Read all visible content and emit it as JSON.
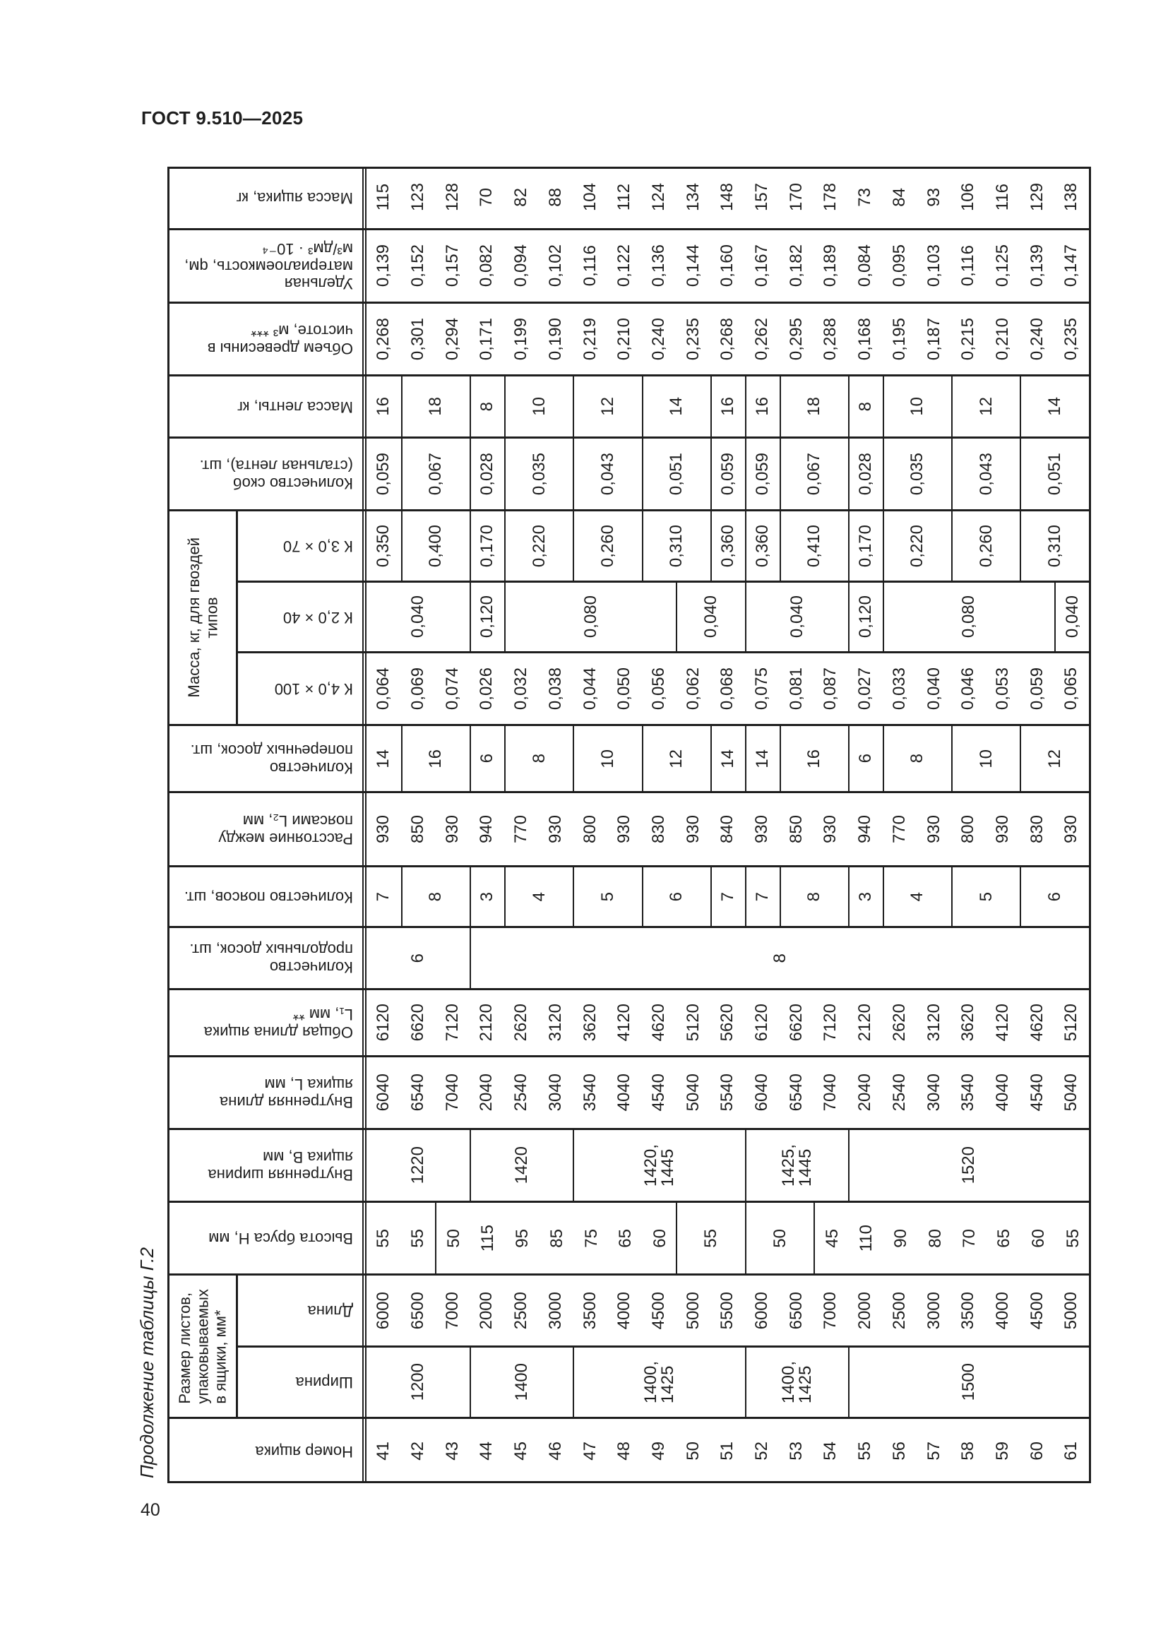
{
  "header": {
    "doc_id": "ГОСТ 9.510—2025"
  },
  "caption": "Продолжение таблицы Г.2",
  "page_number": "40",
  "table": {
    "bands": [
      {
        "label": "Масса ящика, кг",
        "segments": [
          {
            "span": 21,
            "values": [
              "115",
              "123",
              "128",
              "70",
              "82",
              "88",
              "104",
              "112",
              "124",
              "134",
              "148",
              "157",
              "170",
              "178",
              "73",
              "84",
              "93",
              "106",
              "116",
              "129",
              "138"
            ]
          }
        ]
      },
      {
        "label": "Удельная\nматериалоемкость, qм,\nм³/дм³ · 10⁻⁴",
        "segments": [
          {
            "span": 21,
            "values": [
              "0,139",
              "0,152",
              "0,157",
              "0,082",
              "0,094",
              "0,102",
              "0,116",
              "0,122",
              "0,136",
              "0,144",
              "0,160",
              "0,167",
              "0,182",
              "0,189",
              "0,084",
              "0,095",
              "0,103",
              "0,116",
              "0,125",
              "0,139",
              "0,147"
            ]
          }
        ]
      },
      {
        "label": "Объем древесины в\nчистоте, м³ ***",
        "segments": [
          {
            "span": 21,
            "values": [
              "0,268",
              "0,301",
              "0,294",
              "0,171",
              "0,199",
              "0,190",
              "0,219",
              "0,210",
              "0,240",
              "0,235",
              "0,268",
              "0,262",
              "0,295",
              "0,288",
              "0,168",
              "0,195",
              "0,187",
              "0,215",
              "0,210",
              "0,240",
              "0,235"
            ]
          }
        ]
      },
      {
        "label": "Масса ленты, кг",
        "segments": [
          {
            "span": 1,
            "value": "16"
          },
          {
            "span": 2,
            "value": "18"
          },
          {
            "span": 1,
            "value": "8"
          },
          {
            "span": 2,
            "value": "10"
          },
          {
            "span": 2,
            "value": "12"
          },
          {
            "span": 2,
            "value": "14"
          },
          {
            "span": 1,
            "value": "16"
          },
          {
            "span": 1,
            "value": "16"
          },
          {
            "span": 2,
            "value": "18"
          },
          {
            "span": 1,
            "value": "8"
          },
          {
            "span": 2,
            "value": "10"
          },
          {
            "span": 2,
            "value": "12"
          },
          {
            "span": 2,
            "value": "14"
          }
        ]
      },
      {
        "label": "Количество скоб\n(стальная лента), шт.",
        "segments": [
          {
            "span": 1,
            "value": "0,059"
          },
          {
            "span": 2,
            "value": "0,067"
          },
          {
            "span": 1,
            "value": "0,028"
          },
          {
            "span": 2,
            "value": "0,035"
          },
          {
            "span": 2,
            "value": "0,043"
          },
          {
            "span": 2,
            "value": "0,051"
          },
          {
            "span": 1,
            "value": "0,059"
          },
          {
            "span": 1,
            "value": "0,059"
          },
          {
            "span": 2,
            "value": "0,067"
          },
          {
            "span": 1,
            "value": "0,028"
          },
          {
            "span": 2,
            "value": "0,035"
          },
          {
            "span": 2,
            "value": "0,043"
          },
          {
            "span": 2,
            "value": "0,051"
          }
        ]
      },
      {
        "group_label": "Масса, кг, для гвоздей\nтипов",
        "subbands": [
          {
            "label": "К 3,0 × 70",
            "segments": [
              {
                "span": 1,
                "value": "0,350"
              },
              {
                "span": 2,
                "value": "0,400"
              },
              {
                "span": 1,
                "value": "0,170"
              },
              {
                "span": 2,
                "value": "0,220"
              },
              {
                "span": 2,
                "value": "0,260"
              },
              {
                "span": 2,
                "value": "0,310"
              },
              {
                "span": 1,
                "value": "0,360"
              },
              {
                "span": 1,
                "value": "0,360"
              },
              {
                "span": 2,
                "value": "0,410"
              },
              {
                "span": 1,
                "value": "0,170"
              },
              {
                "span": 2,
                "value": "0,220"
              },
              {
                "span": 2,
                "value": "0,260"
              },
              {
                "span": 2,
                "value": "0,310"
              }
            ]
          },
          {
            "label": "К 2,0 × 40",
            "segments": [
              {
                "span": 3,
                "value": "0,040"
              },
              {
                "span": 1,
                "value": "0,120"
              },
              {
                "span": 5,
                "value": "0,080"
              },
              {
                "span": 2,
                "value": "0,040"
              },
              {
                "span": 3,
                "value": "0,040"
              },
              {
                "span": 1,
                "value": "0,120"
              },
              {
                "span": 5,
                "value": "0,080"
              },
              {
                "span": 1,
                "value": "0,040"
              }
            ]
          },
          {
            "label": "К 4,0 × 100",
            "segments": [
              {
                "span": 21,
                "values": [
                  "0,064",
                  "0,069",
                  "0,074",
                  "0,026",
                  "0,032",
                  "0,038",
                  "0,044",
                  "0,050",
                  "0,056",
                  "0,062",
                  "0,068",
                  "0,075",
                  "0,081",
                  "0,087",
                  "0,027",
                  "0,033",
                  "0,040",
                  "0,046",
                  "0,053",
                  "0,059",
                  "0,065"
                ]
              }
            ]
          }
        ]
      },
      {
        "label": "Количество\nпоперечных досок, шт.",
        "segments": [
          {
            "span": 1,
            "value": "14"
          },
          {
            "span": 2,
            "value": "16"
          },
          {
            "span": 1,
            "value": "6"
          },
          {
            "span": 2,
            "value": "8"
          },
          {
            "span": 2,
            "value": "10"
          },
          {
            "span": 2,
            "value": "12"
          },
          {
            "span": 1,
            "value": "14"
          },
          {
            "span": 1,
            "value": "14"
          },
          {
            "span": 2,
            "value": "16"
          },
          {
            "span": 1,
            "value": "6"
          },
          {
            "span": 2,
            "value": "8"
          },
          {
            "span": 2,
            "value": "10"
          },
          {
            "span": 2,
            "value": "12"
          }
        ]
      },
      {
        "label": "Расстояние между\nпоясами L₂, мм",
        "segments": [
          {
            "span": 21,
            "values": [
              "930",
              "850",
              "930",
              "940",
              "770",
              "930",
              "800",
              "930",
              "830",
              "930",
              "840",
              "930",
              "850",
              "930",
              "940",
              "770",
              "930",
              "800",
              "930",
              "830",
              "930"
            ]
          }
        ]
      },
      {
        "label": "Количество поясов, шт.",
        "segments": [
          {
            "span": 1,
            "value": "7"
          },
          {
            "span": 2,
            "value": "8"
          },
          {
            "span": 1,
            "value": "3"
          },
          {
            "span": 2,
            "value": "4"
          },
          {
            "span": 2,
            "value": "5"
          },
          {
            "span": 2,
            "value": "6"
          },
          {
            "span": 1,
            "value": "7"
          },
          {
            "span": 1,
            "value": "7"
          },
          {
            "span": 2,
            "value": "8"
          },
          {
            "span": 1,
            "value": "3"
          },
          {
            "span": 2,
            "value": "4"
          },
          {
            "span": 2,
            "value": "5"
          },
          {
            "span": 2,
            "value": "6"
          }
        ]
      },
      {
        "label": "Количество\nпродольных досок, шт.",
        "segments": [
          {
            "span": 3,
            "value": "6"
          },
          {
            "span": 18,
            "value": "8"
          }
        ]
      },
      {
        "label": "Общая длина ящика\nL₁, мм **",
        "segments": [
          {
            "span": 21,
            "values": [
              "6120",
              "6620",
              "7120",
              "2120",
              "2620",
              "3120",
              "3620",
              "4120",
              "4620",
              "5120",
              "5620",
              "6120",
              "6620",
              "7120",
              "2120",
              "2620",
              "3120",
              "3620",
              "4120",
              "4620",
              "5120"
            ]
          }
        ]
      },
      {
        "label": "Внутренняя длина\nящика L, мм",
        "segments": [
          {
            "span": 21,
            "values": [
              "6040",
              "6540",
              "7040",
              "2040",
              "2540",
              "3040",
              "3540",
              "4040",
              "4540",
              "5040",
              "5540",
              "6040",
              "6540",
              "7040",
              "2040",
              "2540",
              "3040",
              "3540",
              "4040",
              "4540",
              "5040"
            ]
          }
        ]
      },
      {
        "label": "Внутренняя ширина\nящика B, мм",
        "segments": [
          {
            "span": 3,
            "value": "1220"
          },
          {
            "span": 3,
            "value": "1420"
          },
          {
            "span": 5,
            "value": "1420,\n1445"
          },
          {
            "span": 3,
            "value": "1425,\n1445"
          },
          {
            "span": 7,
            "value": "1520"
          }
        ]
      },
      {
        "label": "Высота бруса H, мм",
        "segments": [
          {
            "span": 2,
            "values": [
              "55",
              "55"
            ]
          },
          {
            "span": 7,
            "values": [
              "50",
              "115",
              "95",
              "85",
              "75",
              "65",
              "60"
            ]
          },
          {
            "span": 2,
            "value": "55"
          },
          {
            "span": 2,
            "value": "50"
          },
          {
            "span": 8,
            "values": [
              "45",
              "110",
              "90",
              "80",
              "70",
              "65",
              "60",
              "55"
            ]
          }
        ]
      },
      {
        "group_label": "Размер листов,\nупаковываемых\nв ящики, мм*",
        "subbands": [
          {
            "label": "Длина",
            "segments": [
              {
                "span": 21,
                "values": [
                  "6000",
                  "6500",
                  "7000",
                  "2000",
                  "2500",
                  "3000",
                  "3500",
                  "4000",
                  "4500",
                  "5000",
                  "5500",
                  "6000",
                  "6500",
                  "7000",
                  "2000",
                  "2500",
                  "3000",
                  "3500",
                  "4000",
                  "4500",
                  "5000"
                ]
              }
            ]
          },
          {
            "label": "Ширина",
            "segments": [
              {
                "span": 3,
                "value": "1200"
              },
              {
                "span": 3,
                "value": "1400"
              },
              {
                "span": 5,
                "value": "1400,\n1425"
              },
              {
                "span": 3,
                "value": "1400,\n1425"
              },
              {
                "span": 7,
                "value": "1500"
              }
            ]
          }
        ]
      },
      {
        "label": "Номер ящика",
        "segments": [
          {
            "span": 21,
            "values": [
              "41",
              "42",
              "43",
              "44",
              "45",
              "46",
              "47",
              "48",
              "49",
              "50",
              "51",
              "52",
              "53",
              "54",
              "55",
              "56",
              "57",
              "58",
              "59",
              "60",
              "61"
            ]
          }
        ]
      }
    ]
  }
}
